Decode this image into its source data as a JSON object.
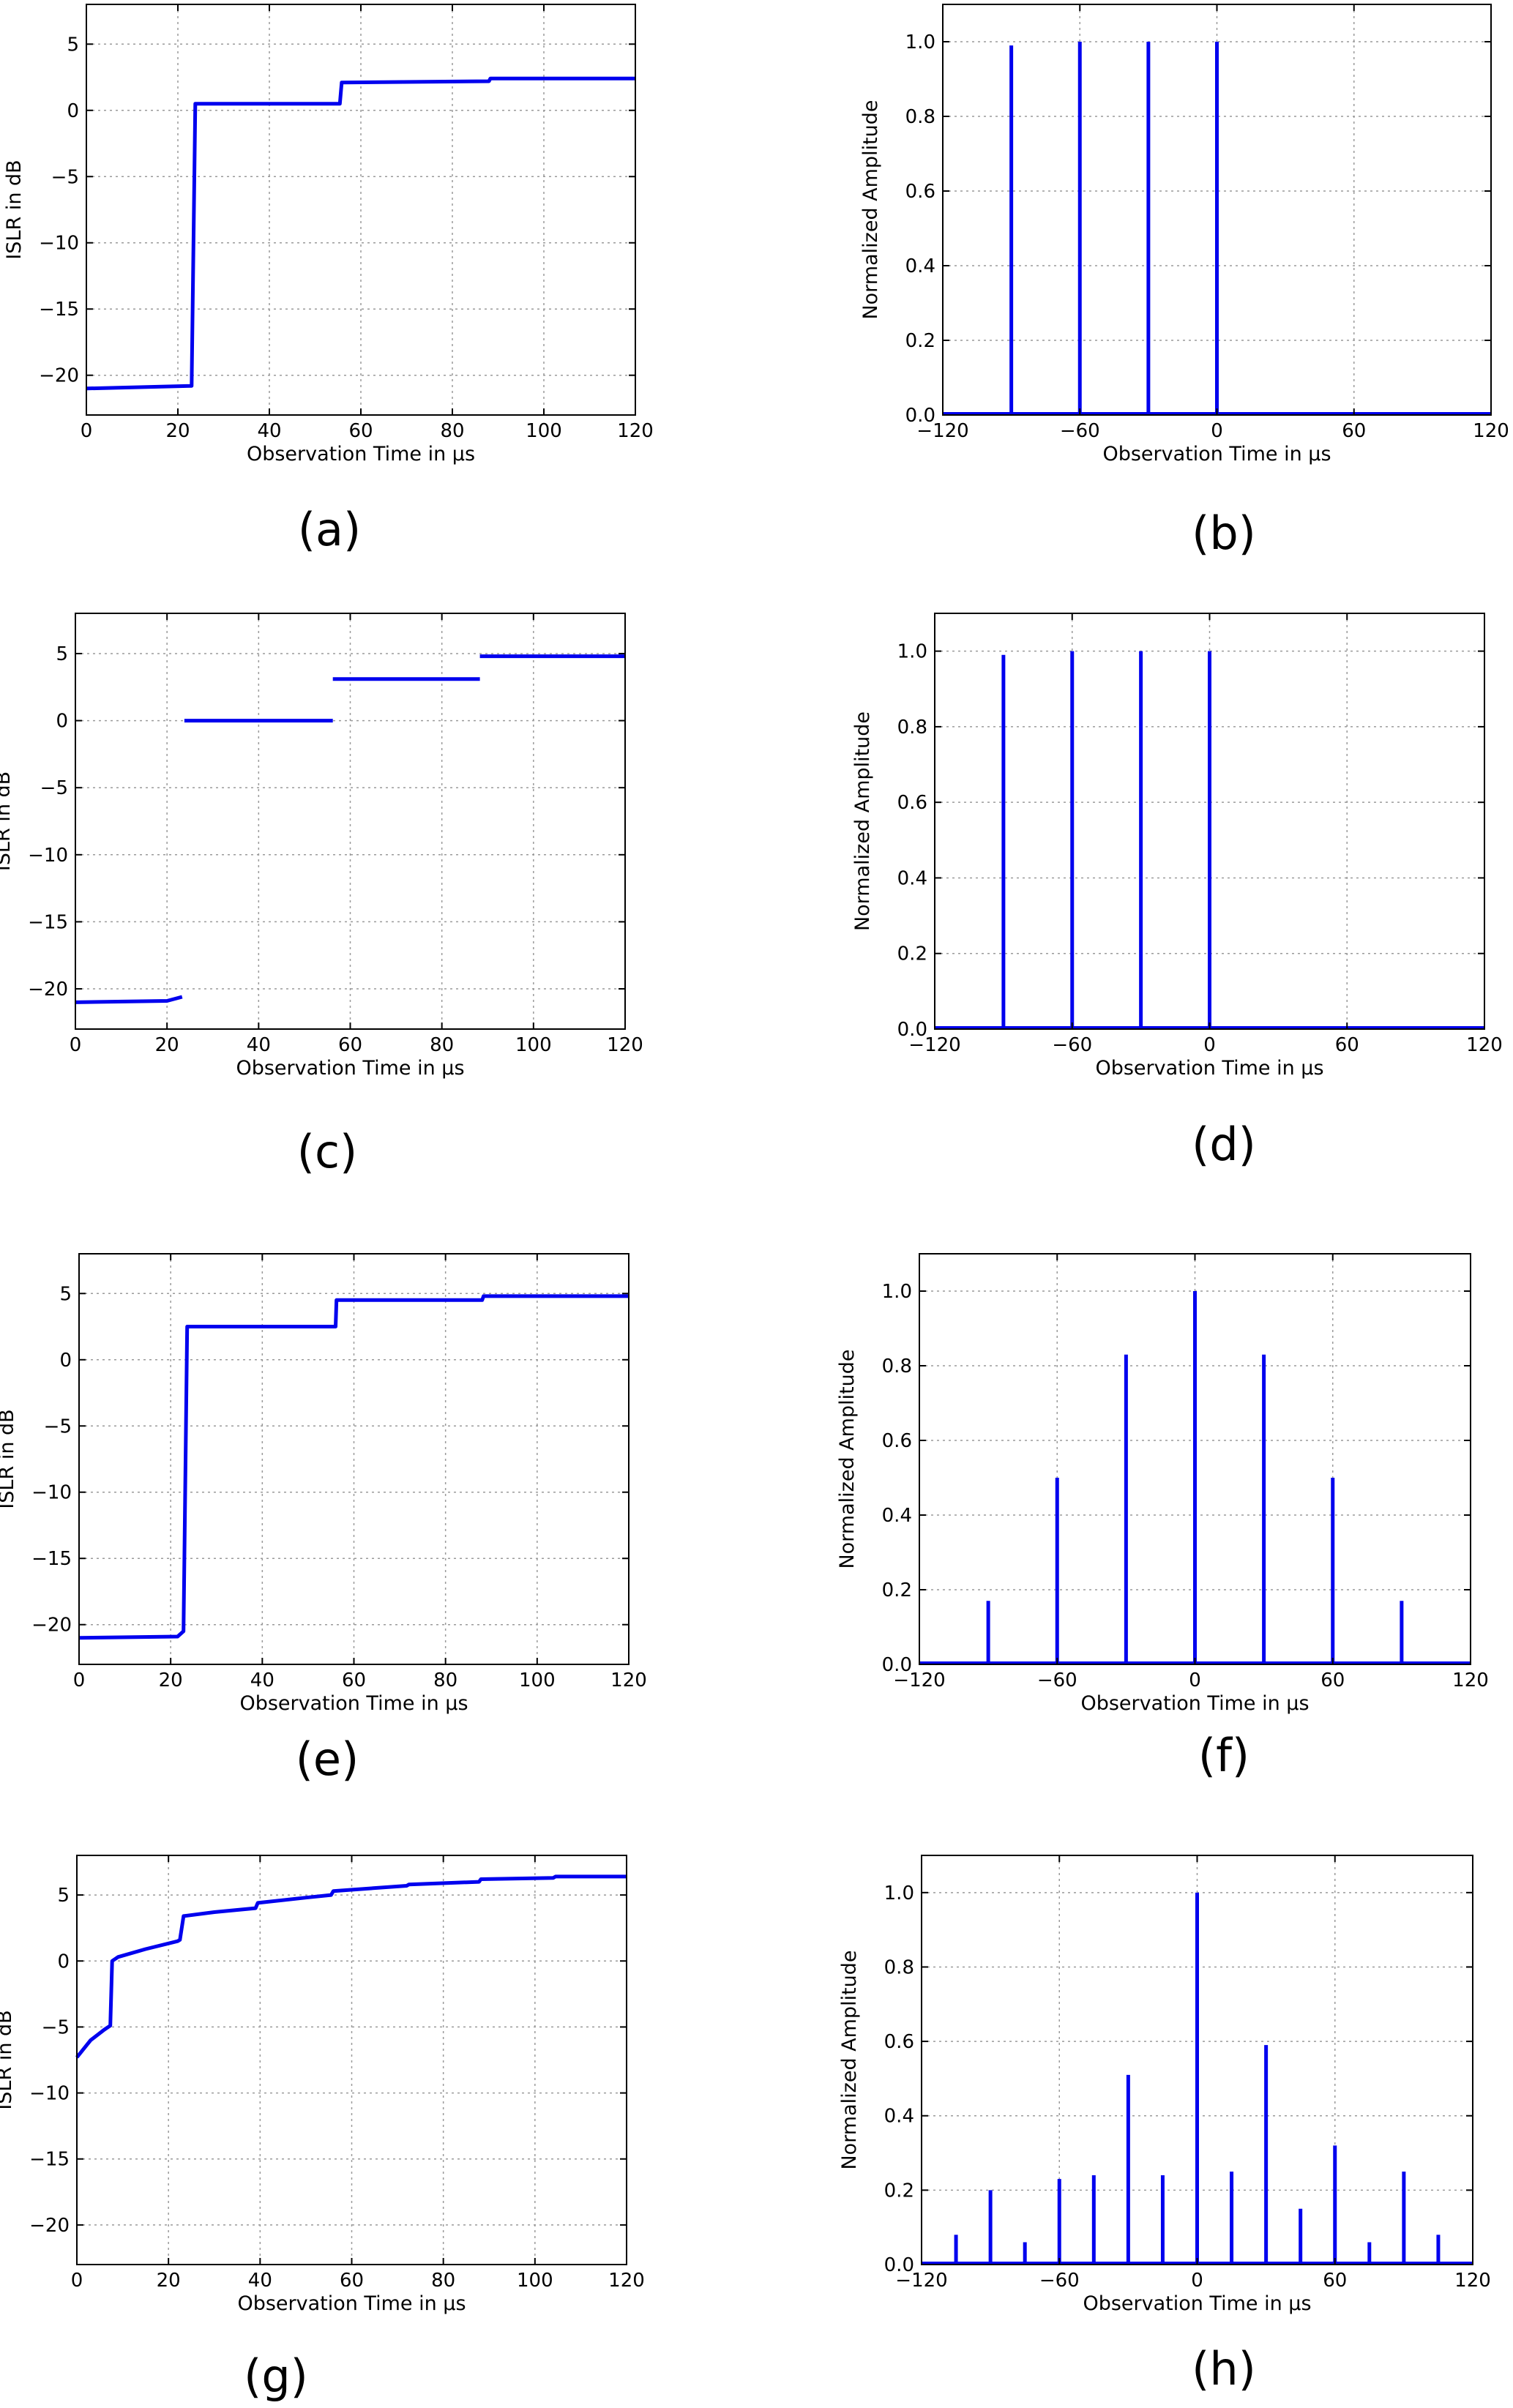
{
  "colors": {
    "series": "#0000ee",
    "grid": "#9a9a9a",
    "frame": "#000000"
  },
  "chart_data": [
    {
      "id": "a",
      "type": "line",
      "caption": "(a)",
      "xlabel": "Observation Time in μs",
      "ylabel": "ISLR in dB",
      "xlim": [
        0,
        120
      ],
      "ylim": [
        -23,
        8
      ],
      "xticks": [
        0,
        20,
        40,
        60,
        80,
        100,
        120
      ],
      "xtick_labels": [
        "0",
        "20",
        "40",
        "60",
        "80",
        "100",
        "120"
      ],
      "yticks": [
        -20,
        -15,
        -10,
        -5,
        0,
        5
      ],
      "ytick_labels": [
        "−20",
        "−15",
        "−10",
        "−5",
        "0",
        "5"
      ],
      "grid": true,
      "series": [
        {
          "segments": [
            {
              "x": [
                0,
                22.9,
                23.0,
                23.8,
                24.0,
                55.4,
                55.8,
                88.0,
                88.3,
                120
              ],
              "y": [
                -21.0,
                -20.8,
                -20.8,
                0.5,
                0.5,
                0.5,
                2.1,
                2.2,
                2.4,
                2.4
              ]
            }
          ]
        }
      ]
    },
    {
      "id": "b",
      "type": "line",
      "caption": "(b)",
      "xlabel": "Observation Time in μs",
      "ylabel": "Normalized Amplitude",
      "xlim": [
        -120,
        120
      ],
      "ylim": [
        0,
        1.1
      ],
      "xticks": [
        -120,
        -60,
        0,
        60,
        120
      ],
      "xtick_labels": [
        "−120",
        "−60",
        "0",
        "60",
        "120"
      ],
      "yticks": [
        0.0,
        0.2,
        0.4,
        0.6,
        0.8,
        1.0
      ],
      "ytick_labels": [
        "0.0",
        "0.2",
        "0.4",
        "0.6",
        "0.8",
        "1.0"
      ],
      "grid": true,
      "baseline": [
        -120,
        120
      ],
      "peaks": {
        "x": [
          -90,
          -60,
          -30,
          0
        ],
        "y": [
          0.99,
          1.0,
          1.0,
          1.0
        ]
      }
    },
    {
      "id": "c",
      "type": "line",
      "caption": "(c)",
      "xlabel": "Observation Time in μs",
      "ylabel": "ISLR in dB",
      "xlim": [
        0,
        120
      ],
      "ylim": [
        -23,
        8
      ],
      "xticks": [
        0,
        20,
        40,
        60,
        80,
        100,
        120
      ],
      "xtick_labels": [
        "0",
        "20",
        "40",
        "60",
        "80",
        "100",
        "120"
      ],
      "yticks": [
        -20,
        -15,
        -10,
        -5,
        0,
        5
      ],
      "ytick_labels": [
        "−20",
        "−15",
        "−10",
        "−5",
        "0",
        "5"
      ],
      "grid": true,
      "series": [
        {
          "segments": [
            {
              "x": [
                0,
                20,
                23.3
              ],
              "y": [
                -21.0,
                -20.9,
                -20.6
              ]
            },
            {
              "x": [
                23.8,
                56.2
              ],
              "y": [
                0.0,
                0.0
              ]
            },
            {
              "x": [
                56.2,
                88.3
              ],
              "y": [
                3.1,
                3.1
              ]
            },
            {
              "x": [
                88.3,
                120
              ],
              "y": [
                4.8,
                4.8
              ]
            }
          ]
        }
      ]
    },
    {
      "id": "d",
      "type": "line",
      "caption": "(d)",
      "xlabel": "Observation Time in μs",
      "ylabel": "Normalized Amplitude",
      "xlim": [
        -120,
        120
      ],
      "ylim": [
        0,
        1.1
      ],
      "xticks": [
        -120,
        -60,
        0,
        60,
        120
      ],
      "xtick_labels": [
        "−120",
        "−60",
        "0",
        "60",
        "120"
      ],
      "yticks": [
        0.0,
        0.2,
        0.4,
        0.6,
        0.8,
        1.0
      ],
      "ytick_labels": [
        "0.0",
        "0.2",
        "0.4",
        "0.6",
        "0.8",
        "1.0"
      ],
      "grid": true,
      "baseline": [
        -120,
        120
      ],
      "peaks": {
        "x": [
          -90,
          -60,
          -30,
          0
        ],
        "y": [
          0.99,
          1.0,
          1.0,
          1.0
        ]
      }
    },
    {
      "id": "e",
      "type": "line",
      "caption": "(e)",
      "xlabel": "Observation Time in μs",
      "ylabel": "ISLR in dB",
      "xlim": [
        0,
        120
      ],
      "ylim": [
        -23,
        8
      ],
      "xticks": [
        0,
        20,
        40,
        60,
        80,
        100,
        120
      ],
      "xtick_labels": [
        "0",
        "20",
        "40",
        "60",
        "80",
        "100",
        "120"
      ],
      "yticks": [
        -20,
        -15,
        -10,
        -5,
        0,
        5
      ],
      "ytick_labels": [
        "−20",
        "−15",
        "−10",
        "−5",
        "0",
        "5"
      ],
      "grid": true,
      "series": [
        {
          "segments": [
            {
              "x": [
                0,
                21.5,
                22.8,
                23.6,
                24.0,
                56.0,
                56.2,
                88.0,
                88.3,
                120
              ],
              "y": [
                -21.0,
                -20.9,
                -20.5,
                2.5,
                2.5,
                2.5,
                4.5,
                4.5,
                4.8,
                4.8
              ]
            }
          ]
        }
      ]
    },
    {
      "id": "f",
      "type": "line",
      "caption": "(f)",
      "xlabel": "Observation Time in μs",
      "ylabel": "Normalized Amplitude",
      "xlim": [
        -120,
        120
      ],
      "ylim": [
        0,
        1.1
      ],
      "xticks": [
        -120,
        -60,
        0,
        60,
        120
      ],
      "xtick_labels": [
        "−120",
        "−60",
        "0",
        "60",
        "120"
      ],
      "yticks": [
        0.0,
        0.2,
        0.4,
        0.6,
        0.8,
        1.0
      ],
      "ytick_labels": [
        "0.0",
        "0.2",
        "0.4",
        "0.6",
        "0.8",
        "1.0"
      ],
      "grid": true,
      "baseline": [
        -120,
        120
      ],
      "peaks": {
        "x": [
          -90,
          -60,
          -30,
          0,
          30,
          60,
          90
        ],
        "y": [
          0.17,
          0.5,
          0.83,
          1.0,
          0.83,
          0.5,
          0.17
        ]
      }
    },
    {
      "id": "g",
      "type": "line",
      "caption": "(g)",
      "xlabel": "Observation Time in μs",
      "ylabel": "ISLR in dB",
      "xlim": [
        0,
        120
      ],
      "ylim": [
        -23,
        8
      ],
      "xticks": [
        0,
        20,
        40,
        60,
        80,
        100,
        120
      ],
      "xtick_labels": [
        "0",
        "20",
        "40",
        "60",
        "80",
        "100",
        "120"
      ],
      "yticks": [
        -20,
        -15,
        -10,
        -5,
        0,
        5
      ],
      "ytick_labels": [
        "−20",
        "−15",
        "−10",
        "−5",
        "0",
        "5"
      ],
      "grid": true,
      "series": [
        {
          "segments": [
            {
              "x": [
                0,
                3,
                6,
                7.3,
                7.7,
                9,
                15,
                22,
                22.5,
                23.3,
                30,
                39,
                39.5,
                50,
                55.5,
                56,
                72,
                72.5,
                87.8,
                88.2,
                104,
                104.5,
                120
              ],
              "y": [
                -7.3,
                -6.0,
                -5.2,
                -4.9,
                0.0,
                0.3,
                0.9,
                1.5,
                1.6,
                3.4,
                3.7,
                4.0,
                4.4,
                4.8,
                5.0,
                5.3,
                5.7,
                5.8,
                6.0,
                6.2,
                6.3,
                6.4,
                6.4
              ]
            }
          ]
        }
      ]
    },
    {
      "id": "h",
      "type": "line",
      "caption": "(h)",
      "xlabel": "Observation Time in μs",
      "ylabel": "Normalized Amplitude",
      "xlim": [
        -120,
        120
      ],
      "ylim": [
        0,
        1.1
      ],
      "xticks": [
        -120,
        -60,
        0,
        60,
        120
      ],
      "xtick_labels": [
        "−120",
        "−60",
        "0",
        "60",
        "120"
      ],
      "yticks": [
        0.0,
        0.2,
        0.4,
        0.6,
        0.8,
        1.0
      ],
      "ytick_labels": [
        "0.0",
        "0.2",
        "0.4",
        "0.6",
        "0.8",
        "1.0"
      ],
      "grid": true,
      "baseline": [
        -120,
        120
      ],
      "peaks": {
        "x": [
          -105,
          -90,
          -75,
          -60,
          -45,
          -30,
          -15,
          0,
          15,
          30,
          45,
          60,
          75,
          90,
          105
        ],
        "y": [
          0.08,
          0.2,
          0.06,
          0.23,
          0.24,
          0.51,
          0.24,
          1.0,
          0.25,
          0.59,
          0.15,
          0.32,
          0.06,
          0.25,
          0.08
        ]
      }
    }
  ]
}
